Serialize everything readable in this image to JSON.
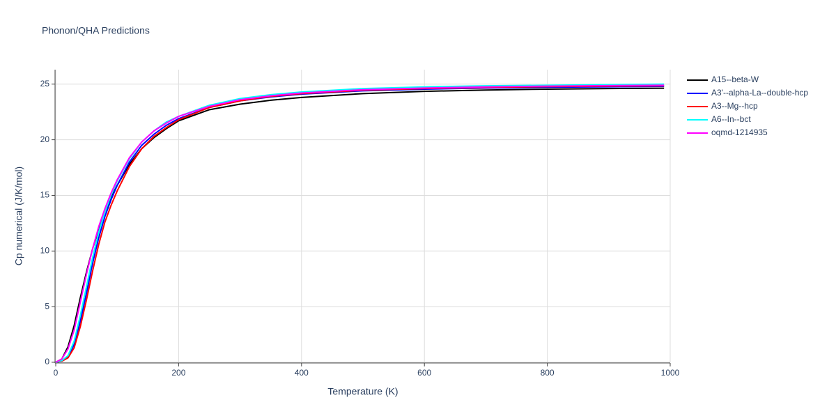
{
  "chart_data": {
    "type": "line",
    "title": "Phonon/QHA Predictions",
    "xlabel": "Temperature (K)",
    "ylabel": "Cp numerical (J/K/mol)",
    "xlim": [
      0,
      1000
    ],
    "ylim": [
      0,
      26.3
    ],
    "xticks": [
      0,
      200,
      400,
      600,
      800,
      1000
    ],
    "yticks": [
      0,
      5,
      10,
      15,
      20,
      25
    ],
    "grid": true,
    "legend": "right",
    "x": [
      0,
      10,
      20,
      30,
      40,
      50,
      60,
      70,
      80,
      90,
      100,
      120,
      140,
      160,
      180,
      200,
      250,
      300,
      350,
      400,
      500,
      600,
      700,
      800,
      900,
      990
    ],
    "series": [
      {
        "name": "A15--beta-W",
        "color": "#000000",
        "values": [
          0,
          0.3,
          1.4,
          3.3,
          5.8,
          8.1,
          10.2,
          12,
          13.5,
          14.8,
          15.9,
          17.8,
          19.2,
          20.2,
          21.0,
          21.7,
          22.7,
          23.2,
          23.55,
          23.8,
          24.15,
          24.35,
          24.47,
          24.55,
          24.6,
          24.63
        ]
      },
      {
        "name": "A3'--alpha-La--double-hcp",
        "color": "#0000ff",
        "values": [
          0,
          0.1,
          0.5,
          1.6,
          3.7,
          6.2,
          8.9,
          11.2,
          13.1,
          14.6,
          15.9,
          18.0,
          19.5,
          20.5,
          21.3,
          21.9,
          22.9,
          23.5,
          23.85,
          24.1,
          24.4,
          24.55,
          24.65,
          24.72,
          24.76,
          24.8
        ]
      },
      {
        "name": "A3--Mg--hcp",
        "color": "#ff0000",
        "values": [
          0,
          0.1,
          0.4,
          1.3,
          3.2,
          5.6,
          8.2,
          10.6,
          12.6,
          14.1,
          15.4,
          17.6,
          19.2,
          20.3,
          21.1,
          21.8,
          22.9,
          23.5,
          23.9,
          24.15,
          24.45,
          24.6,
          24.7,
          24.78,
          24.82,
          24.85
        ]
      },
      {
        "name": "A6--In--bct",
        "color": "#00ffff",
        "values": [
          0,
          0.15,
          0.6,
          1.9,
          4.2,
          6.8,
          9.4,
          11.7,
          13.5,
          15,
          16.3,
          18.3,
          19.8,
          20.8,
          21.6,
          22.1,
          23.1,
          23.7,
          24.05,
          24.3,
          24.6,
          24.75,
          24.85,
          24.9,
          24.95,
          25.0
        ]
      },
      {
        "name": "oqmd-1214935",
        "color": "#ff00ff",
        "values": [
          0,
          0.3,
          1.2,
          2.9,
          5.4,
          7.9,
          10.2,
          12.2,
          13.8,
          15.2,
          16.4,
          18.4,
          19.8,
          20.8,
          21.5,
          22.1,
          23.0,
          23.6,
          23.95,
          24.2,
          24.5,
          24.65,
          24.75,
          24.82,
          24.87,
          24.9
        ]
      }
    ]
  }
}
